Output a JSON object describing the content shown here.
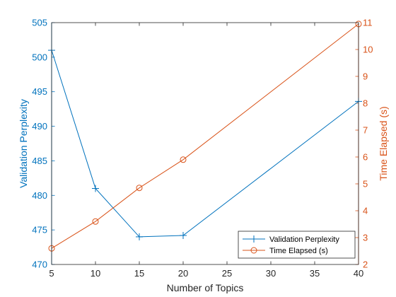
{
  "chart_data": {
    "type": "line",
    "x": [
      5,
      10,
      15,
      20,
      40
    ],
    "xlabel": "Number of Topics",
    "xlim": [
      5,
      40
    ],
    "xticks": [
      "5",
      "10",
      "15",
      "20",
      "25",
      "30",
      "35",
      "40"
    ],
    "grid": false,
    "legend_position": "bottom-right",
    "series": [
      {
        "name": "Validation Perplexity",
        "axis": "left",
        "color": "#0072BD",
        "marker": "plus",
        "values": [
          501.0,
          481.0,
          474.0,
          474.2,
          493.6
        ]
      },
      {
        "name": "Time Elapsed (s)",
        "axis": "right",
        "color": "#D95319",
        "marker": "circle",
        "values": [
          2.6,
          3.6,
          4.85,
          5.9,
          10.95
        ]
      }
    ],
    "y_left": {
      "label": "Validation Perplexity",
      "lim": [
        470,
        505
      ],
      "ticks": [
        "470",
        "475",
        "480",
        "485",
        "490",
        "495",
        "500",
        "505"
      ],
      "color": "#0072BD"
    },
    "y_right": {
      "label": "Time Elapsed (s)",
      "lim": [
        2,
        11
      ],
      "ticks": [
        "2",
        "3",
        "4",
        "5",
        "6",
        "7",
        "8",
        "9",
        "10",
        "11"
      ],
      "color": "#D95319"
    }
  }
}
